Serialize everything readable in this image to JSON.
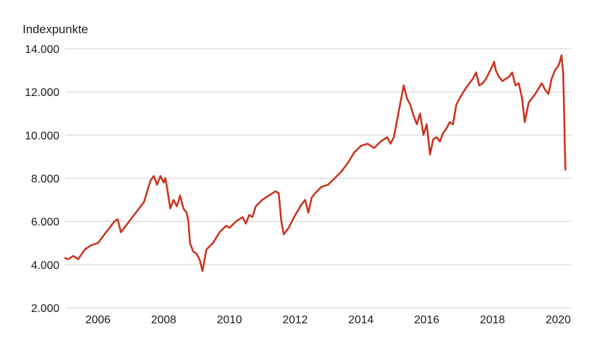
{
  "chart_data": {
    "type": "line",
    "title": "",
    "ylabel": "Indexpunkte",
    "xlabel": "",
    "xlim": [
      2005.0,
      2020.4
    ],
    "ylim": [
      2000,
      14000
    ],
    "grid": "horizontal",
    "legend": "none",
    "x_ticks": [
      2006,
      2008,
      2010,
      2012,
      2014,
      2016,
      2018,
      2020
    ],
    "x_tick_labels": [
      "2006",
      "2008",
      "2010",
      "2012",
      "2014",
      "2016",
      "2018",
      "2020"
    ],
    "y_ticks": [
      2000,
      4000,
      6000,
      8000,
      10000,
      12000,
      14000
    ],
    "y_tick_labels": [
      "2.000",
      "4.000",
      "6.000",
      "8.000",
      "10.000",
      "12.000",
      "14.000"
    ],
    "colors": {
      "series": "#c8341e",
      "grid": "#cfcfcf",
      "text": "#1a1a1a"
    },
    "series": [
      {
        "color": "#c8341e",
        "x": [
          2005.0,
          2005.1,
          2005.25,
          2005.4,
          2005.6,
          2005.8,
          2006.0,
          2006.2,
          2006.4,
          2006.5,
          2006.6,
          2006.7,
          2006.85,
          2007.0,
          2007.2,
          2007.4,
          2007.5,
          2007.6,
          2007.7,
          2007.8,
          2007.9,
          2008.0,
          2008.05,
          2008.1,
          2008.2,
          2008.3,
          2008.4,
          2008.5,
          2008.6,
          2008.7,
          2008.75,
          2008.8,
          2008.9,
          2009.0,
          2009.1,
          2009.18,
          2009.3,
          2009.5,
          2009.7,
          2009.9,
          2010.0,
          2010.2,
          2010.4,
          2010.5,
          2010.6,
          2010.7,
          2010.8,
          2011.0,
          2011.2,
          2011.4,
          2011.5,
          2011.58,
          2011.65,
          2011.8,
          2012.0,
          2012.2,
          2012.3,
          2012.4,
          2012.5,
          2012.6,
          2012.8,
          2013.0,
          2013.2,
          2013.4,
          2013.6,
          2013.8,
          2014.0,
          2014.2,
          2014.4,
          2014.6,
          2014.8,
          2014.9,
          2015.0,
          2015.1,
          2015.2,
          2015.3,
          2015.4,
          2015.5,
          2015.6,
          2015.7,
          2015.8,
          2015.9,
          2016.0,
          2016.1,
          2016.2,
          2016.3,
          2016.4,
          2016.5,
          2016.6,
          2016.7,
          2016.8,
          2016.9,
          2017.0,
          2017.2,
          2017.4,
          2017.5,
          2017.6,
          2017.7,
          2017.8,
          2017.9,
          2018.0,
          2018.05,
          2018.1,
          2018.2,
          2018.3,
          2018.4,
          2018.5,
          2018.6,
          2018.7,
          2018.8,
          2018.9,
          2018.98,
          2019.1,
          2019.3,
          2019.5,
          2019.6,
          2019.7,
          2019.8,
          2019.9,
          2020.0,
          2020.05,
          2020.1,
          2020.13,
          2020.15,
          2020.18,
          2020.2,
          2020.22
        ],
        "y": [
          4300,
          4250,
          4400,
          4250,
          4700,
          4900,
          5000,
          5400,
          5800,
          6000,
          6100,
          5500,
          5800,
          6100,
          6500,
          6900,
          7400,
          7900,
          8100,
          7700,
          8100,
          7800,
          8000,
          7600,
          6600,
          7000,
          6700,
          7200,
          6600,
          6400,
          6000,
          5000,
          4600,
          4500,
          4200,
          3700,
          4700,
          5000,
          5500,
          5800,
          5700,
          6000,
          6200,
          5900,
          6300,
          6200,
          6700,
          7000,
          7200,
          7400,
          7300,
          6000,
          5400,
          5700,
          6300,
          6800,
          7000,
          6400,
          7100,
          7300,
          7600,
          7700,
          8000,
          8300,
          8700,
          9200,
          9500,
          9600,
          9400,
          9700,
          9900,
          9600,
          9900,
          10700,
          11500,
          12300,
          11700,
          11400,
          10900,
          10500,
          11000,
          10000,
          10500,
          9100,
          9800,
          9900,
          9700,
          10100,
          10300,
          10600,
          10500,
          11400,
          11700,
          12200,
          12600,
          12900,
          12300,
          12400,
          12600,
          12900,
          13200,
          13400,
          13000,
          12700,
          12500,
          12600,
          12700,
          12900,
          12300,
          12400,
          11700,
          10600,
          11500,
          11900,
          12400,
          12100,
          11900,
          12600,
          13000,
          13200,
          13400,
          13700,
          13200,
          12900,
          11000,
          9500,
          8400
        ]
      }
    ]
  }
}
